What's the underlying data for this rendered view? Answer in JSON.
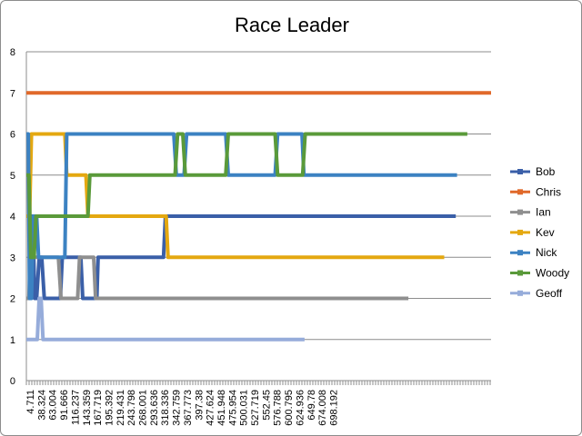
{
  "chart_data": {
    "type": "line",
    "title": "Race Leader",
    "xlabel": "",
    "ylabel": "",
    "ylim": [
      0,
      8
    ],
    "yticks": [
      0,
      1,
      2,
      3,
      4,
      5,
      6,
      7,
      8
    ],
    "grid": "horizontal",
    "legend_position": "right",
    "xlim": [
      0,
      725
    ],
    "x_tick_labels": [
      "4.711",
      "38.324",
      "63.004",
      "91.666",
      "116.237",
      "143.359",
      "167.719",
      "195.392",
      "219.431",
      "243.798",
      "268.001",
      "293.636",
      "318.336",
      "342.759",
      "367.773",
      "397.38",
      "427.624",
      "451.948",
      "475.954",
      "500.031",
      "527.719",
      "552.45",
      "576.788",
      "600.795",
      "624.936",
      "649.78",
      "674.008",
      "698.192"
    ],
    "series": [
      {
        "name": "Bob",
        "color": "#3A5FA8",
        "x": [
          0,
          5,
          8,
          10,
          13,
          16,
          20,
          24,
          28,
          53,
          56,
          85,
          88,
          110,
          112,
          214,
          217,
          670
        ],
        "y": [
          2,
          2,
          4,
          4,
          2,
          2,
          3,
          3,
          2,
          2,
          3,
          3,
          2,
          2,
          3,
          3,
          4,
          4
        ]
      },
      {
        "name": "Chris",
        "color": "#E0692A",
        "x": [
          0,
          725
        ],
        "y": [
          7,
          7
        ]
      },
      {
        "name": "Ian",
        "color": "#8F8F8F",
        "x": [
          0,
          4,
          6,
          13,
          17,
          50,
          54,
          80,
          83,
          105,
          108,
          596
        ],
        "y": [
          2,
          2,
          3,
          3,
          3,
          3,
          2,
          2,
          3,
          3,
          2,
          2
        ]
      },
      {
        "name": "Kev",
        "color": "#E4A810",
        "x": [
          0,
          5,
          8,
          60,
          63,
          93,
          96,
          218,
          221,
          652
        ],
        "y": [
          4,
          4,
          6,
          6,
          5,
          5,
          4,
          4,
          3,
          3
        ]
      },
      {
        "name": "Nick",
        "color": "#3C82C2",
        "x": [
          0,
          3,
          5,
          8,
          11,
          16,
          19,
          60,
          63,
          230,
          234,
          246,
          250,
          311,
          315,
          388,
          392,
          430,
          433,
          672
        ],
        "y": [
          6,
          6,
          2,
          2,
          4,
          4,
          3,
          3,
          6,
          6,
          5,
          5,
          6,
          6,
          5,
          5,
          6,
          6,
          5,
          5
        ]
      },
      {
        "name": "Woody",
        "color": "#5A9A3A",
        "x": [
          0,
          4,
          7,
          12,
          15,
          96,
          99,
          232,
          236,
          244,
          248,
          311,
          315,
          388,
          392,
          431,
          435,
          688
        ],
        "y": [
          5,
          5,
          3,
          3,
          4,
          4,
          5,
          5,
          6,
          6,
          5,
          5,
          6,
          6,
          5,
          5,
          6,
          6
        ]
      },
      {
        "name": "Geoff",
        "color": "#96ACDA",
        "x": [
          0,
          17,
          20,
          23,
          26,
          434
        ],
        "y": [
          1,
          1,
          2,
          2,
          1,
          1
        ]
      }
    ]
  }
}
